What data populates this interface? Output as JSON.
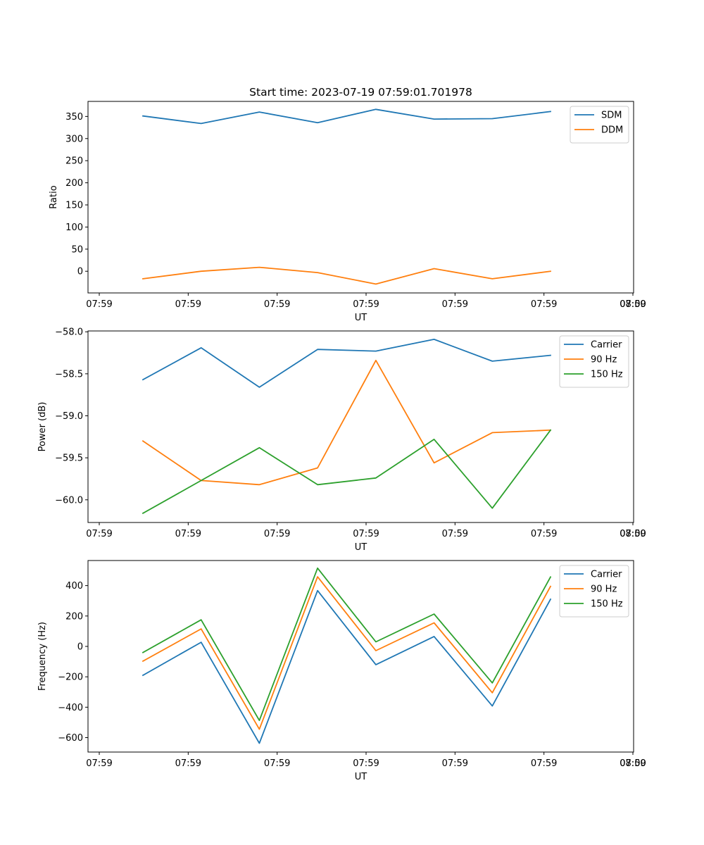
{
  "chart_data": [
    {
      "type": "line",
      "title": "Start time: 2023-07-19 07:59:01.701978",
      "xlabel": "UT",
      "ylabel": "Ratio",
      "x_tick_labels": [
        "07:59",
        "07:59",
        "07:59",
        "07:59",
        "07:59",
        "07:59",
        "07:59",
        "08:00"
      ],
      "y_ticks": [
        0,
        50,
        100,
        150,
        200,
        250,
        300,
        350
      ],
      "ylim": [
        -49,
        384
      ],
      "x": [
        1,
        2,
        3,
        4,
        5,
        6,
        7,
        8
      ],
      "series": [
        {
          "name": "SDM",
          "color": "#1f77b4",
          "values": [
            351,
            334,
            360,
            336,
            366,
            344,
            345,
            361
          ]
        },
        {
          "name": "DDM",
          "color": "#ff7f0e",
          "values": [
            -17,
            0,
            9,
            -3,
            -29,
            6,
            -17,
            0
          ]
        }
      ],
      "legend": "top-right"
    },
    {
      "type": "line",
      "xlabel": "UT",
      "ylabel": "Power (dB)",
      "x_tick_labels": [
        "07:59",
        "07:59",
        "07:59",
        "07:59",
        "07:59",
        "07:59",
        "07:59",
        "08:00"
      ],
      "y_ticks": [
        -58.0,
        -58.5,
        -59.0,
        -59.5,
        -60.0
      ],
      "y_tick_labels": [
        "−58.0",
        "−58.5",
        "−59.0",
        "−59.5",
        "−60.0"
      ],
      "ylim": [
        -60.27,
        -57.99
      ],
      "x": [
        1,
        2,
        3,
        4,
        5,
        6,
        7,
        8
      ],
      "series": [
        {
          "name": "Carrier",
          "color": "#1f77b4",
          "values": [
            -58.57,
            -58.19,
            -58.66,
            -58.21,
            -58.23,
            -58.09,
            -58.35,
            -58.28
          ]
        },
        {
          "name": "90 Hz",
          "color": "#ff7f0e",
          "values": [
            -59.3,
            -59.77,
            -59.82,
            -59.62,
            -58.34,
            -59.56,
            -59.2,
            -59.17
          ]
        },
        {
          "name": "150 Hz",
          "color": "#2ca02c",
          "values": [
            -60.16,
            -59.77,
            -59.38,
            -59.82,
            -59.74,
            -59.28,
            -60.1,
            -59.17
          ]
        }
      ],
      "legend": "top-right"
    },
    {
      "type": "line",
      "xlabel": "UT",
      "ylabel": "Frequency (Hz)",
      "x_tick_labels": [
        "07:59",
        "07:59",
        "07:59",
        "07:59",
        "07:59",
        "07:59",
        "07:59",
        "08:00"
      ],
      "y_ticks": [
        400,
        200,
        0,
        -200,
        -400,
        -600
      ],
      "y_tick_labels": [
        "400",
        "200",
        "0",
        "−200",
        "−400",
        "−600"
      ],
      "ylim": [
        -695,
        565
      ],
      "x": [
        1,
        2,
        3,
        4,
        5,
        6,
        7,
        8
      ],
      "series": [
        {
          "name": "Carrier",
          "color": "#1f77b4",
          "values": [
            -190,
            27,
            -637,
            367,
            -120,
            65,
            -392,
            310
          ]
        },
        {
          "name": "90 Hz",
          "color": "#ff7f0e",
          "values": [
            -97,
            115,
            -545,
            458,
            -28,
            155,
            -305,
            395
          ]
        },
        {
          "name": "150 Hz",
          "color": "#2ca02c",
          "values": [
            -40,
            175,
            -487,
            515,
            30,
            213,
            -240,
            457
          ]
        }
      ],
      "legend": "top-right"
    }
  ]
}
